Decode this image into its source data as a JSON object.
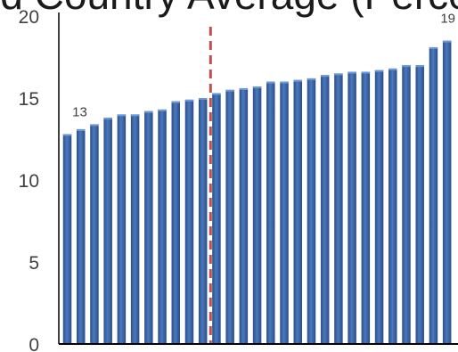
{
  "chart_data": {
    "type": "bar",
    "title": "…vanced Country Average (Percent)…",
    "xlabel": "",
    "ylabel": "",
    "ylim": [
      0,
      20
    ],
    "yticks": [
      "0",
      "5",
      "10",
      "15",
      "20"
    ],
    "grid": false,
    "legend": "none",
    "values": [
      12.8,
      13.1,
      13.4,
      13.8,
      14.0,
      14.0,
      14.2,
      14.3,
      14.8,
      14.9,
      15.0,
      15.3,
      15.5,
      15.6,
      15.7,
      16.0,
      16.0,
      16.1,
      16.2,
      16.4,
      16.5,
      16.6,
      16.6,
      16.7,
      16.8,
      17.0,
      17.0,
      18.1,
      18.5
    ],
    "data_labels": [
      {
        "index": 0,
        "text": "13"
      },
      {
        "index": 28,
        "text": "19"
      }
    ],
    "reference_line": {
      "after_index": 10,
      "style": "dashed",
      "color": "#c0504d"
    },
    "bar_color": "#4472c4"
  }
}
